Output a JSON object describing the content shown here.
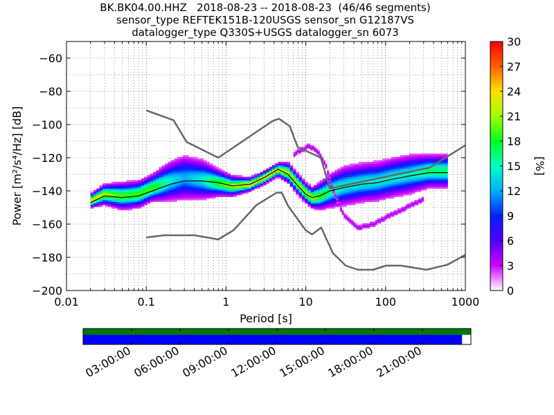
{
  "title": {
    "line1": "BK.BK04.00.HHZ   2018-08-23 -- 2018-08-23  (46/46 segments)",
    "line2": "sensor_type REFTEK151B-120USGS sensor_sn G12187VS",
    "line3": "datalogger_type Q330S+USGS datalogger_sn 6073"
  },
  "chart_data": {
    "type": "heatmap",
    "xlabel": "Period [s]",
    "ylabel": "Power [m²/s⁴/Hz] [dB]",
    "x_scale": "log",
    "xlim": [
      0.01,
      1000
    ],
    "ylim": [
      -200,
      -50
    ],
    "x_tick_labels": [
      "0.01",
      "0.1",
      "1",
      "10",
      "100",
      "1000"
    ],
    "x_ticks": [
      0.01,
      0.1,
      1,
      10,
      100,
      1000
    ],
    "y_ticks": [
      -60,
      -80,
      -100,
      -120,
      -140,
      -160,
      -180,
      -200
    ],
    "y_tick_labels": [
      "−60",
      "−80",
      "−100",
      "−120",
      "−140",
      "−160",
      "−180",
      "−200"
    ],
    "grid": true,
    "colorbar": {
      "label": "[%]",
      "range": [
        0,
        30
      ],
      "ticks": [
        0,
        3,
        6,
        9,
        12,
        15,
        18,
        21,
        24,
        27,
        30
      ],
      "tick_labels": [
        "0",
        "3",
        "6",
        "9",
        "12",
        "15",
        "18",
        "21",
        "24",
        "27",
        "30"
      ]
    },
    "main_density_band": {
      "period": [
        0.02,
        0.03,
        0.05,
        0.08,
        0.12,
        0.2,
        0.3,
        0.5,
        0.8,
        1.2,
        2,
        3,
        4.5,
        6,
        8,
        10,
        12,
        15,
        20,
        30,
        50,
        80,
        120,
        200,
        350,
        600
      ],
      "center_db": [
        -146,
        -142,
        -143,
        -142,
        -138,
        -134,
        -132,
        -133,
        -135,
        -137,
        -136,
        -132,
        -127,
        -129,
        -136,
        -141,
        -144,
        -143,
        -140,
        -137,
        -135,
        -134,
        -132,
        -130,
        -128,
        -128
      ],
      "spread_db": [
        2,
        3,
        4,
        4,
        4,
        6,
        7,
        6,
        4,
        3,
        2,
        2,
        2,
        3,
        3,
        3,
        3,
        4,
        5,
        6,
        6,
        6,
        6,
        6,
        5,
        5
      ]
    },
    "outlier_track": {
      "period": [
        7,
        9,
        11,
        14,
        18,
        22,
        30,
        45,
        70,
        110,
        180,
        300
      ],
      "power_db": [
        -118,
        -115,
        -113,
        -116,
        -125,
        -140,
        -155,
        -162,
        -160,
        -155,
        -150,
        -145
      ]
    },
    "mode_line": {
      "period": [
        0.02,
        0.03,
        0.05,
        0.08,
        0.12,
        0.2,
        0.3,
        0.5,
        0.8,
        1.2,
        2,
        3,
        4.5,
        6,
        8,
        10,
        12,
        15,
        20,
        30,
        50,
        80,
        120,
        200,
        350,
        600
      ],
      "power_db": [
        -147,
        -143,
        -144,
        -143,
        -140,
        -136,
        -134,
        -134,
        -135,
        -137,
        -136,
        -132,
        -127,
        -130,
        -137,
        -142,
        -144,
        -143,
        -140,
        -138,
        -136,
        -135,
        -133,
        -131,
        -129,
        -129
      ]
    },
    "nhnm": {
      "period": [
        0.1,
        0.22,
        0.32,
        0.8,
        3.8,
        4.6,
        6.3,
        7.9,
        15.4,
        20,
        354.8,
        1000
      ],
      "power_db": [
        -91.5,
        -97.4,
        -110.5,
        -120,
        -98,
        -96.5,
        -101,
        -113.5,
        -120,
        -138.5,
        -126,
        -112.5
      ]
    },
    "nlnm": {
      "period": [
        0.1,
        0.17,
        0.4,
        0.8,
        1.24,
        2.4,
        4.3,
        5,
        6,
        10,
        12,
        15.6,
        21.9,
        31.6,
        45,
        70,
        101,
        154,
        328,
        600,
        1000
      ],
      "power_db": [
        -168,
        -166.7,
        -166.7,
        -169.2,
        -163.7,
        -148.6,
        -141.1,
        -141.1,
        -149,
        -163.8,
        -166.2,
        -162.1,
        -177.5,
        -185,
        -187.5,
        -187.5,
        -185,
        -185,
        -187.5,
        -184.4,
        -178.5
      ]
    },
    "timeline": {
      "tick_labels": [
        "03:00:00",
        "06:00:00",
        "09:00:00",
        "12:00:00",
        "15:00:00",
        "18:00:00",
        "21:00:00"
      ],
      "tick_hours": [
        3,
        6,
        9,
        12,
        15,
        18,
        21
      ],
      "range_hours": [
        0,
        24
      ],
      "data_coverage_hours": [
        0,
        24
      ],
      "psd_coverage_hours": [
        0,
        23.45
      ]
    }
  },
  "colors": {
    "nhnm_nlnm": "#666666",
    "mode_line": "#000000",
    "timeline_data": "#007700",
    "timeline_psd": "#0000ff"
  }
}
